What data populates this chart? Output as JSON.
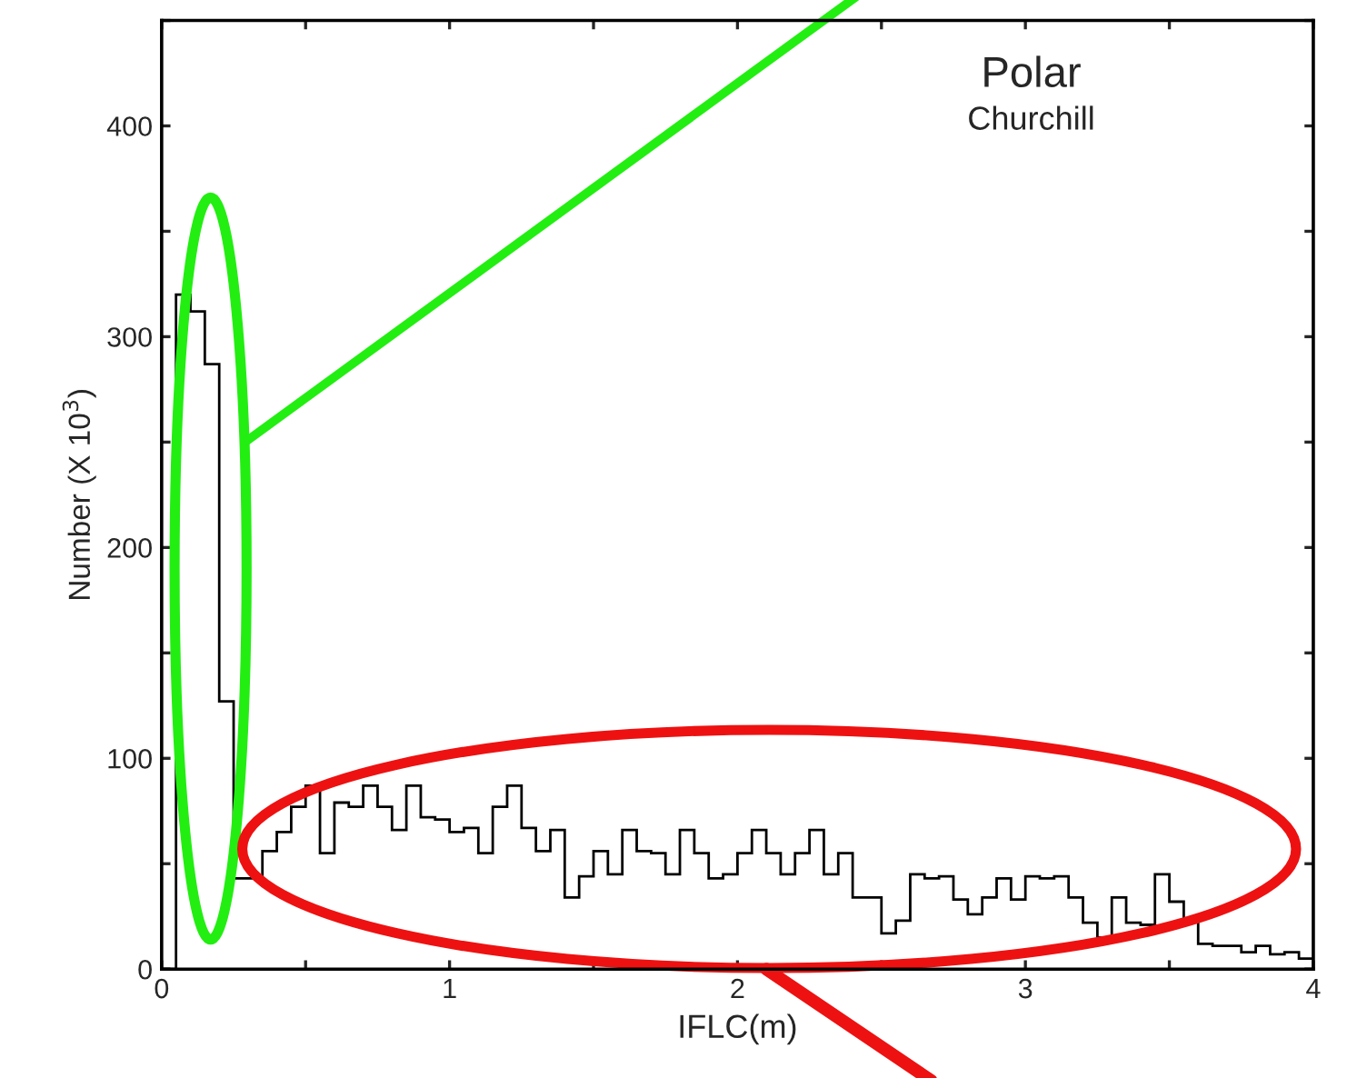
{
  "chart_data": {
    "type": "histogram",
    "title": "Polar",
    "subtitle": "Churchill",
    "xlabel": "IFLC(m)",
    "ylabel": "Number (X 10$^{3}$)",
    "bins": [
      0,
      0.05,
      0.1,
      0.15,
      0.2,
      0.25,
      0.3,
      0.35,
      0.4,
      0.45,
      0.5,
      0.55,
      0.6,
      0.65,
      0.7,
      0.75,
      0.8,
      0.85,
      0.9,
      0.95,
      1,
      1.05,
      1.1,
      1.15,
      1.2,
      1.25,
      1.3,
      1.35,
      1.4,
      1.45,
      1.5,
      1.55,
      1.6,
      1.65,
      1.7,
      1.75,
      1.8,
      1.85,
      1.9,
      1.95,
      2,
      2.05,
      2.1,
      2.15,
      2.2,
      2.25,
      2.3,
      2.35,
      2.4,
      2.45,
      2.5,
      2.55,
      2.6,
      2.65,
      2.7,
      2.75,
      2.8,
      2.85,
      2.9,
      2.95,
      3,
      3.05,
      3.1,
      3.15,
      3.2,
      3.25,
      3.3,
      3.35,
      3.4,
      3.45,
      3.5,
      3.55,
      3.6,
      3.65,
      3.7,
      3.75,
      3.8,
      3.85,
      3.9,
      3.95,
      4
    ],
    "values": [
      0,
      320,
      312,
      287,
      127,
      43,
      43,
      56,
      65,
      77,
      87,
      55,
      79,
      77,
      87,
      77,
      66,
      87,
      72,
      71,
      65,
      67,
      55,
      77,
      87,
      67,
      56,
      66,
      34,
      44,
      56,
      45,
      66,
      56,
      55,
      45,
      66,
      55,
      43,
      45,
      55,
      66,
      55,
      45,
      55,
      66,
      45,
      55,
      34,
      34,
      17,
      23,
      45,
      43,
      44,
      33,
      26,
      34,
      43,
      33,
      44,
      43,
      44,
      34,
      22,
      15,
      34,
      22,
      21,
      45,
      32,
      23,
      12,
      11,
      11,
      8,
      11,
      7,
      8,
      5
    ],
    "color": "#000000",
    "xlim": [
      0,
      4
    ],
    "ylim": [
      0,
      450
    ],
    "xticks": [
      0,
      {
        "value": 0.5,
        "label": null
      },
      1,
      {
        "value": 1.5,
        "label": null
      },
      2,
      {
        "value": 2.5,
        "label": null
      },
      3,
      {
        "value": 3.5,
        "label": null
      },
      4
    ],
    "yticks": [
      0,
      {
        "value": 50,
        "label": null
      },
      100,
      {
        "value": 150,
        "label": null
      },
      200,
      {
        "value": 250,
        "label": null
      },
      300,
      {
        "value": 350,
        "label": null
      },
      400,
      {
        "value": 450,
        "label": null
      }
    ],
    "grid": false,
    "legend": false
  }
}
